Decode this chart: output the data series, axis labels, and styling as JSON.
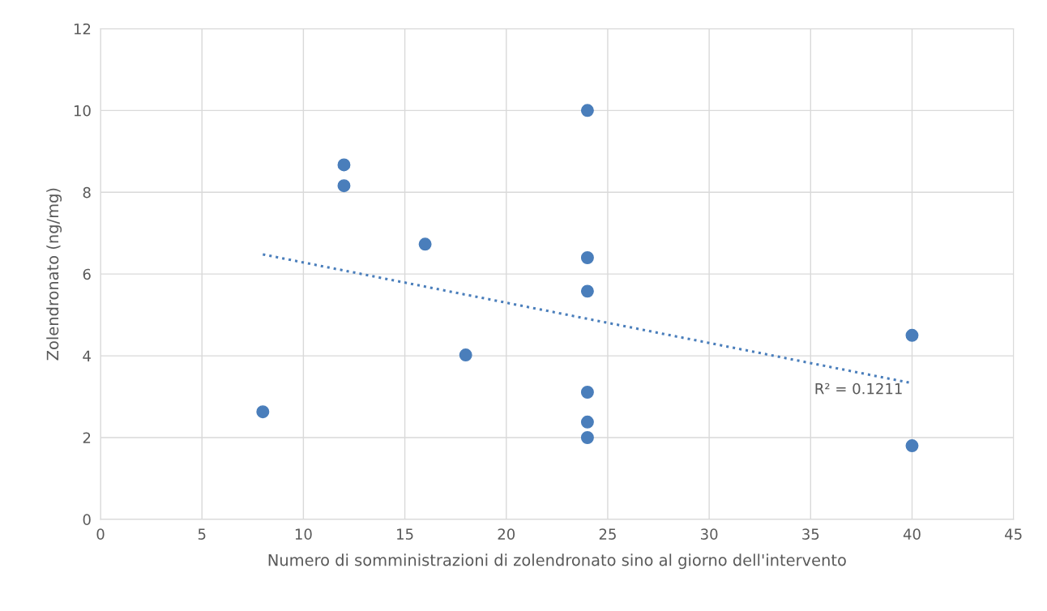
{
  "chart_data": {
    "type": "scatter",
    "xlabel": "Numero di somministrazioni di zolendronato sino al giorno dell'intervento",
    "ylabel": "Zolendronato (ng/mg)",
    "xlim": [
      0,
      45
    ],
    "xticks": [
      0,
      5,
      10,
      15,
      20,
      25,
      30,
      35,
      40,
      45
    ],
    "ylim": [
      0,
      12
    ],
    "yticks": [
      0,
      2,
      4,
      6,
      8,
      10,
      12
    ],
    "grid": true,
    "marker": "circle",
    "series": [
      {
        "color": "#4a7ebb",
        "x": [
          8,
          12,
          12,
          16,
          18,
          24,
          24,
          24,
          24,
          24,
          24,
          40,
          40
        ],
        "values": [
          2.63,
          8.67,
          8.16,
          6.73,
          4.02,
          10.0,
          6.4,
          5.58,
          3.11,
          2.38,
          2.0,
          4.5,
          1.8
        ]
      },
      {
        "type": "line",
        "color": "#4a7ebb",
        "line_style": "dotted",
        "marker": "none",
        "x": [
          8,
          40
        ],
        "values": [
          6.48,
          3.33
        ]
      }
    ],
    "annotations": [
      "R² = 0.1211"
    ]
  }
}
